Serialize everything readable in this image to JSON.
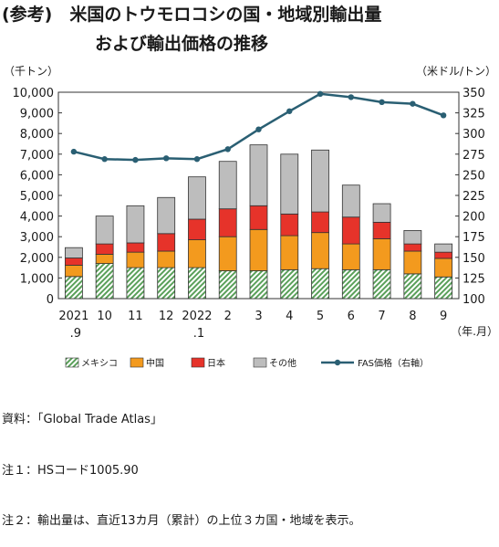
{
  "title": {
    "tag": "(参考)",
    "line1": "米国のトウモロコシの国・地域別輸出量",
    "line2": "および輸出価格の推移"
  },
  "notes": [
    "資料：「Global Trade Atlas」",
    "注１：HSコード1005.90",
    "注２：輸出量は、直近13カ月（累計）の上位３カ国・地域を表示。"
  ],
  "chart_data": {
    "type": "bar",
    "stacked": true,
    "categories": [
      "2021 .9",
      "10",
      "11",
      "12",
      "2022 .1",
      "2",
      "3",
      "4",
      "5",
      "6",
      "7",
      "8",
      "9"
    ],
    "x_tick_lines": [
      [
        "2021",
        ".9"
      ],
      [
        "10"
      ],
      [
        "11"
      ],
      [
        "12"
      ],
      [
        "2022",
        ".1"
      ],
      [
        "2"
      ],
      [
        "3"
      ],
      [
        "4"
      ],
      [
        "5"
      ],
      [
        "6"
      ],
      [
        "7"
      ],
      [
        "8"
      ],
      [
        "9"
      ]
    ],
    "x_unit": "（年.月）",
    "y_left": {
      "unit": "（千トン）",
      "min": 0,
      "max": 10000,
      "step": 1000,
      "ticks": [
        "0",
        "1,000",
        "2,000",
        "3,000",
        "4,000",
        "5,000",
        "6,000",
        "7,000",
        "8,000",
        "9,000",
        "10,000"
      ]
    },
    "y_right": {
      "unit": "（米ドル/トン）",
      "min": 100,
      "max": 350,
      "step": 25,
      "ticks": [
        "100",
        "125",
        "150",
        "175",
        "200",
        "225",
        "250",
        "275",
        "300",
        "325",
        "350"
      ]
    },
    "series": [
      {
        "name": "メキシコ",
        "axis": "left",
        "color": "#8fbf8a",
        "pattern": "hatch",
        "values": [
          1070,
          1700,
          1500,
          1500,
          1500,
          1350,
          1350,
          1400,
          1450,
          1400,
          1400,
          1200,
          1050
        ]
      },
      {
        "name": "中国",
        "axis": "left",
        "color": "#f39a1e",
        "values": [
          550,
          450,
          750,
          800,
          1350,
          1650,
          2000,
          1650,
          1750,
          1250,
          1500,
          1100,
          900
        ]
      },
      {
        "name": "日本",
        "axis": "left",
        "color": "#e6332a",
        "values": [
          350,
          500,
          450,
          850,
          1000,
          1350,
          1150,
          1050,
          1000,
          1300,
          800,
          350,
          300
        ]
      },
      {
        "name": "その他",
        "axis": "left",
        "color": "#bdbdbd",
        "values": [
          500,
          1350,
          1800,
          1750,
          2050,
          2300,
          2950,
          2900,
          3000,
          1550,
          900,
          650,
          400
        ]
      },
      {
        "name": "FAS価格（右軸）",
        "axis": "right",
        "type": "line",
        "color": "#2a5f73",
        "values": [
          278,
          269,
          268,
          270,
          269,
          281,
          305,
          327,
          348,
          344,
          338,
          336,
          322
        ]
      }
    ],
    "legend_position": "bottom",
    "grid": false
  }
}
